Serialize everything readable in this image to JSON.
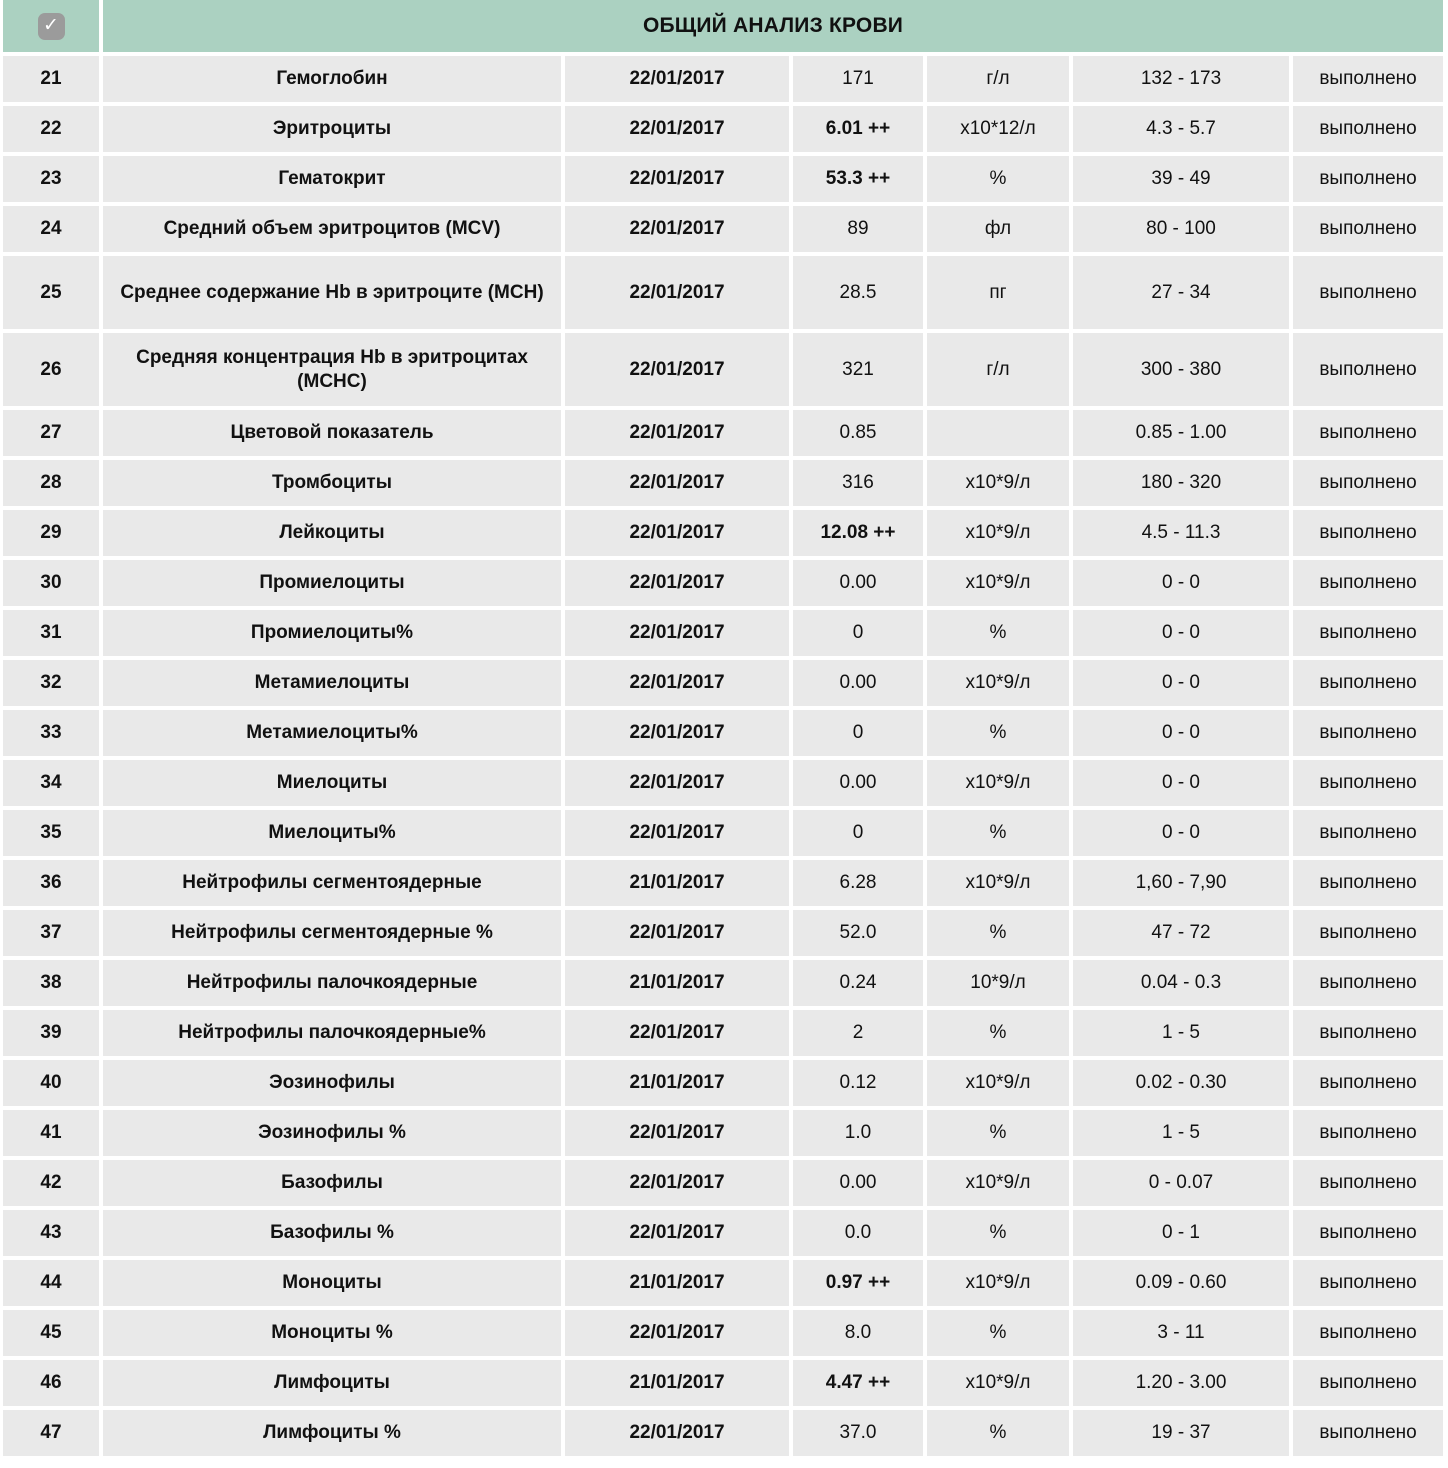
{
  "colors": {
    "header_bg": "#abd1c1",
    "row_bg": "#e9e9e9",
    "checkbox_bg": "#9b9b9b",
    "text": "#111111",
    "gap": "#ffffff"
  },
  "header": {
    "title": "ОБЩИЙ АНАЛИЗ КРОВИ",
    "checkbox": {
      "checked": true,
      "glyph": "✓"
    }
  },
  "rows": [
    {
      "num": "21",
      "name": "Гемоглобин",
      "date": "22/01/2017",
      "value": "171",
      "value_bold": false,
      "unit": "г/л",
      "range": "132 - 173",
      "status": "выполнено"
    },
    {
      "num": "22",
      "name": "Эритроциты",
      "date": "22/01/2017",
      "value": "6.01 ++",
      "value_bold": true,
      "unit": "х10*12/л",
      "range": "4.3 - 5.7",
      "status": "выполнено"
    },
    {
      "num": "23",
      "name": "Гематокрит",
      "date": "22/01/2017",
      "value": "53.3 ++",
      "value_bold": true,
      "unit": "%",
      "range": "39 - 49",
      "status": "выполнено"
    },
    {
      "num": "24",
      "name": "Средний объем эритроцитов (MCV)",
      "date": "22/01/2017",
      "value": "89",
      "value_bold": false,
      "unit": "фл",
      "range": "80 - 100",
      "status": "выполнено"
    },
    {
      "num": "25",
      "name": "Среднее содержание Hb в эритроците (MCH)",
      "date": "22/01/2017",
      "value": "28.5",
      "value_bold": false,
      "unit": "пг",
      "range": "27 - 34",
      "status": "выполнено",
      "tall": true
    },
    {
      "num": "26",
      "name": "Средняя концентрация Hb в эритроцитах (MCHC)",
      "date": "22/01/2017",
      "value": "321",
      "value_bold": false,
      "unit": "г/л",
      "range": "300 - 380",
      "status": "выполнено",
      "tall": true
    },
    {
      "num": "27",
      "name": "Цветовой показатель",
      "date": "22/01/2017",
      "value": "0.85",
      "value_bold": false,
      "unit": "",
      "range": "0.85 - 1.00",
      "status": "выполнено"
    },
    {
      "num": "28",
      "name": "Тромбоциты",
      "date": "22/01/2017",
      "value": "316",
      "value_bold": false,
      "unit": "х10*9/л",
      "range": "180 - 320",
      "status": "выполнено"
    },
    {
      "num": "29",
      "name": "Лейкоциты",
      "date": "22/01/2017",
      "value": "12.08 ++",
      "value_bold": true,
      "unit": "х10*9/л",
      "range": "4.5 - 11.3",
      "status": "выполнено"
    },
    {
      "num": "30",
      "name": "Промиелоциты",
      "date": "22/01/2017",
      "value": "0.00",
      "value_bold": false,
      "unit": "х10*9/л",
      "range": "0 - 0",
      "status": "выполнено"
    },
    {
      "num": "31",
      "name": "Промиелоциты%",
      "date": "22/01/2017",
      "value": "0",
      "value_bold": false,
      "unit": "%",
      "range": "0 - 0",
      "status": "выполнено"
    },
    {
      "num": "32",
      "name": "Метамиелоциты",
      "date": "22/01/2017",
      "value": "0.00",
      "value_bold": false,
      "unit": "х10*9/л",
      "range": "0 - 0",
      "status": "выполнено"
    },
    {
      "num": "33",
      "name": "Метамиелоциты%",
      "date": "22/01/2017",
      "value": "0",
      "value_bold": false,
      "unit": "%",
      "range": "0 - 0",
      "status": "выполнено"
    },
    {
      "num": "34",
      "name": "Миелоциты",
      "date": "22/01/2017",
      "value": "0.00",
      "value_bold": false,
      "unit": "х10*9/л",
      "range": "0 - 0",
      "status": "выполнено"
    },
    {
      "num": "35",
      "name": "Миелоциты%",
      "date": "22/01/2017",
      "value": "0",
      "value_bold": false,
      "unit": "%",
      "range": "0 - 0",
      "status": "выполнено"
    },
    {
      "num": "36",
      "name": "Нейтрофилы сегментоядерные",
      "date": "21/01/2017",
      "value": "6.28",
      "value_bold": false,
      "unit": "х10*9/л",
      "range": "1,60 - 7,90",
      "status": "выполнено"
    },
    {
      "num": "37",
      "name": "Нейтрофилы сегментоядерные %",
      "date": "22/01/2017",
      "value": "52.0",
      "value_bold": false,
      "unit": "%",
      "range": "47 - 72",
      "status": "выполнено"
    },
    {
      "num": "38",
      "name": "Нейтрофилы палочкоядерные",
      "date": "21/01/2017",
      "value": "0.24",
      "value_bold": false,
      "unit": "10*9/л",
      "range": "0.04 - 0.3",
      "status": "выполнено"
    },
    {
      "num": "39",
      "name": "Нейтрофилы палочкоядерные%",
      "date": "22/01/2017",
      "value": "2",
      "value_bold": false,
      "unit": "%",
      "range": "1 - 5",
      "status": "выполнено"
    },
    {
      "num": "40",
      "name": "Эозинофилы",
      "date": "21/01/2017",
      "value": "0.12",
      "value_bold": false,
      "unit": "х10*9/л",
      "range": "0.02 - 0.30",
      "status": "выполнено"
    },
    {
      "num": "41",
      "name": "Эозинофилы %",
      "date": "22/01/2017",
      "value": "1.0",
      "value_bold": false,
      "unit": "%",
      "range": "1 - 5",
      "status": "выполнено"
    },
    {
      "num": "42",
      "name": "Базофилы",
      "date": "22/01/2017",
      "value": "0.00",
      "value_bold": false,
      "unit": "х10*9/л",
      "range": "0 - 0.07",
      "status": "выполнено"
    },
    {
      "num": "43",
      "name": "Базофилы %",
      "date": "22/01/2017",
      "value": "0.0",
      "value_bold": false,
      "unit": "%",
      "range": "0 - 1",
      "status": "выполнено"
    },
    {
      "num": "44",
      "name": "Моноциты",
      "date": "21/01/2017",
      "value": "0.97 ++",
      "value_bold": true,
      "unit": "х10*9/л",
      "range": "0.09 - 0.60",
      "status": "выполнено"
    },
    {
      "num": "45",
      "name": "Моноциты %",
      "date": "22/01/2017",
      "value": "8.0",
      "value_bold": false,
      "unit": "%",
      "range": "3 - 11",
      "status": "выполнено"
    },
    {
      "num": "46",
      "name": "Лимфоциты",
      "date": "21/01/2017",
      "value": "4.47 ++",
      "value_bold": true,
      "unit": "х10*9/л",
      "range": "1.20 - 3.00",
      "status": "выполнено"
    },
    {
      "num": "47",
      "name": "Лимфоциты %",
      "date": "22/01/2017",
      "value": "37.0",
      "value_bold": false,
      "unit": "%",
      "range": "19 - 37",
      "status": "выполнено"
    }
  ]
}
